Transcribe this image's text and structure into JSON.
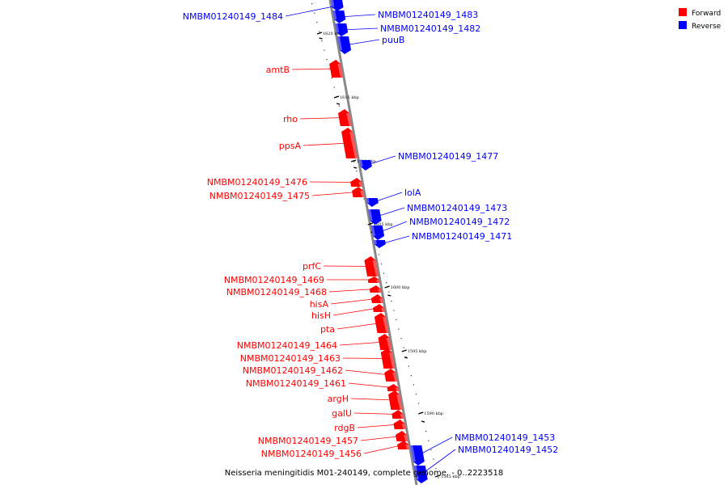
{
  "caption": "Neisseria meningitidis M01-240149, complete genome. - 0..2223518",
  "legend": [
    {
      "label": "Forward",
      "color": "#ff0000"
    },
    {
      "label": "Reverse",
      "color": "#0000ff"
    }
  ],
  "colors": {
    "forward": "#ff0000",
    "reverse": "#0000ff",
    "backbone": "#888888"
  },
  "ticks": [
    {
      "label": "1620 kbp"
    },
    {
      "label": "1615 kbp"
    },
    {
      "label": "1610 kbp"
    },
    {
      "label": "1605 kbp"
    },
    {
      "label": "1600 kbp"
    },
    {
      "label": "1595 kbp"
    },
    {
      "label": "1590 kbp"
    },
    {
      "label": "1585 kbp"
    }
  ],
  "genes": [
    {
      "name": "NMBM01240149_1484",
      "strand": "reverse"
    },
    {
      "name": "NMBM01240149_1483",
      "strand": "reverse"
    },
    {
      "name": "NMBM01240149_1482",
      "strand": "reverse"
    },
    {
      "name": "puuB",
      "strand": "reverse"
    },
    {
      "name": "amtB",
      "strand": "forward"
    },
    {
      "name": "rho",
      "strand": "forward"
    },
    {
      "name": "ppsA",
      "strand": "forward"
    },
    {
      "name": "NMBM01240149_1477",
      "strand": "reverse"
    },
    {
      "name": "NMBM01240149_1476",
      "strand": "forward"
    },
    {
      "name": "NMBM01240149_1475",
      "strand": "forward"
    },
    {
      "name": "lolA",
      "strand": "reverse"
    },
    {
      "name": "NMBM01240149_1473",
      "strand": "reverse"
    },
    {
      "name": "NMBM01240149_1472",
      "strand": "reverse"
    },
    {
      "name": "NMBM01240149_1471",
      "strand": "reverse"
    },
    {
      "name": "prfC",
      "strand": "forward"
    },
    {
      "name": "NMBM01240149_1469",
      "strand": "forward"
    },
    {
      "name": "NMBM01240149_1468",
      "strand": "forward"
    },
    {
      "name": "hisA",
      "strand": "forward"
    },
    {
      "name": "hisH",
      "strand": "forward"
    },
    {
      "name": "pta",
      "strand": "forward"
    },
    {
      "name": "NMBM01240149_1464",
      "strand": "forward"
    },
    {
      "name": "NMBM01240149_1463",
      "strand": "forward"
    },
    {
      "name": "NMBM01240149_1462",
      "strand": "forward"
    },
    {
      "name": "NMBM01240149_1461",
      "strand": "forward"
    },
    {
      "name": "argH",
      "strand": "forward"
    },
    {
      "name": "galU",
      "strand": "forward"
    },
    {
      "name": "rdgB",
      "strand": "forward"
    },
    {
      "name": "NMBM01240149_1457",
      "strand": "forward"
    },
    {
      "name": "NMBM01240149_1456",
      "strand": "forward"
    },
    {
      "name": "NMBM01240149_1453",
      "strand": "reverse"
    },
    {
      "name": "NMBM01240149_1452",
      "strand": "reverse"
    }
  ]
}
